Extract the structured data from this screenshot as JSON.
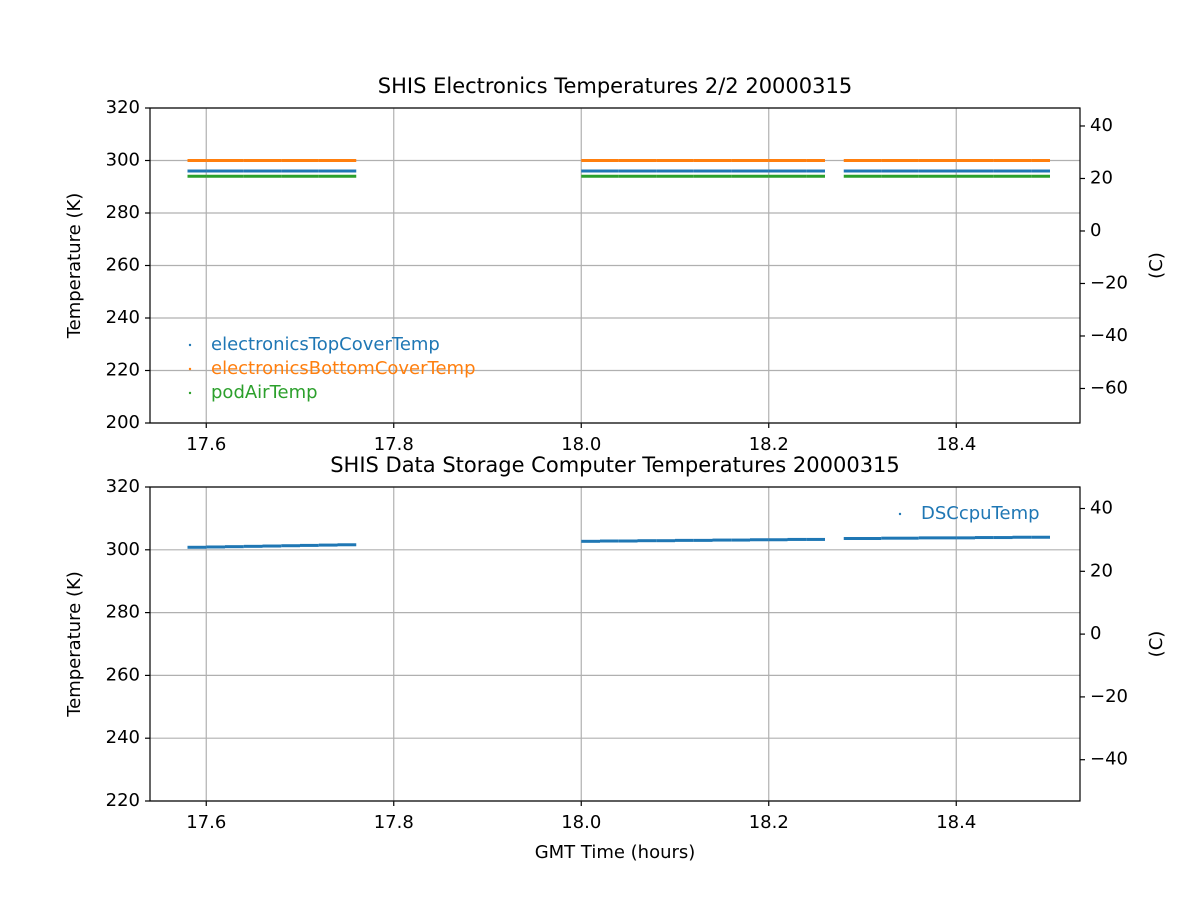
{
  "chart_data": [
    {
      "type": "scatter",
      "title": "SHIS Electronics Temperatures 2/2 20000315",
      "y_label": "Temperature (K)",
      "y2_label": "(C)",
      "x": [
        17.59,
        17.61,
        17.63,
        17.65,
        17.67,
        17.69,
        17.71,
        17.73,
        17.75,
        18.01,
        18.03,
        18.05,
        18.07,
        18.09,
        18.11,
        18.13,
        18.15,
        18.17,
        18.19,
        18.21,
        18.23,
        18.25,
        18.29,
        18.31,
        18.33,
        18.35,
        18.37,
        18.39,
        18.41,
        18.43,
        18.45,
        18.47,
        18.49
      ],
      "series": [
        {
          "name": "electronicsTopCoverTemp",
          "color": "#1f77b4",
          "values": [
            296,
            296,
            296,
            296,
            296,
            296,
            296,
            296,
            296,
            296,
            296,
            296,
            296,
            296,
            296,
            296,
            296,
            296,
            296,
            296,
            296,
            296,
            296,
            296,
            296,
            296,
            296,
            296,
            296,
            296,
            296,
            296,
            296
          ]
        },
        {
          "name": "electronicsBottomCoverTemp",
          "color": "#ff7f0e",
          "values": [
            300,
            300,
            300,
            300,
            300,
            300,
            300,
            300,
            300,
            300,
            300,
            300,
            300,
            300,
            300,
            300,
            300,
            300,
            300,
            300,
            300,
            300,
            300,
            300,
            300,
            300,
            300,
            300,
            300,
            300,
            300,
            300,
            300
          ]
        },
        {
          "name": "podAirTemp",
          "color": "#2ca02c",
          "values": [
            294,
            294,
            294,
            294,
            294,
            294,
            294,
            294,
            294,
            294,
            294,
            294,
            294,
            294,
            294,
            294,
            294,
            294,
            294,
            294,
            294,
            294,
            294,
            294,
            294,
            294,
            294,
            294,
            294,
            294,
            294,
            294,
            294
          ]
        }
      ],
      "xlim": [
        17.54,
        18.532
      ],
      "xticks": [
        17.6,
        17.8,
        {
          "value": 18,
          "label": "18.0"
        },
        18.2,
        18.4
      ],
      "ylim": [
        200,
        320
      ],
      "yticks": [
        200,
        220,
        240,
        260,
        280,
        300,
        320
      ],
      "y2lim": [
        -73.15,
        46.85
      ],
      "y2ticks": [
        {
          "value": -60,
          "label": "−60"
        },
        {
          "value": -40,
          "label": "−40"
        },
        {
          "value": -20,
          "label": "−20"
        },
        0,
        20,
        40
      ],
      "grid": true,
      "legend": "lower left"
    },
    {
      "type": "scatter",
      "title": "SHIS Data Storage Computer Temperatures 20000315",
      "x_label": "GMT Time (hours)",
      "y_label": "Temperature (K)",
      "y2_label": "(C)",
      "x": [
        17.59,
        17.61,
        17.63,
        17.65,
        17.67,
        17.69,
        17.71,
        17.73,
        17.75,
        18.01,
        18.03,
        18.05,
        18.07,
        18.09,
        18.11,
        18.13,
        18.15,
        18.17,
        18.19,
        18.21,
        18.23,
        18.25,
        18.29,
        18.31,
        18.33,
        18.35,
        18.37,
        18.39,
        18.41,
        18.43,
        18.45,
        18.47,
        18.49
      ],
      "series": [
        {
          "name": "DSCcpuTemp",
          "color": "#1f77b4",
          "values": [
            300.8,
            300.9,
            301.0,
            301.1,
            301.2,
            301.3,
            301.4,
            301.5,
            301.6,
            302.7,
            302.8,
            302.8,
            302.9,
            302.9,
            303.0,
            303.0,
            303.1,
            303.1,
            303.2,
            303.2,
            303.3,
            303.3,
            303.6,
            303.6,
            303.7,
            303.7,
            303.8,
            303.8,
            303.8,
            303.9,
            303.9,
            304.0,
            304.0
          ]
        }
      ],
      "xlim": [
        17.54,
        18.532
      ],
      "xticks": [
        17.6,
        17.8,
        {
          "value": 18,
          "label": "18.0"
        },
        18.2,
        18.4
      ],
      "ylim": [
        220,
        320
      ],
      "yticks": [
        220,
        240,
        260,
        280,
        300,
        320
      ],
      "y2lim": [
        -53.15,
        46.85
      ],
      "y2ticks": [
        {
          "value": -40,
          "label": "−40"
        },
        {
          "value": -20,
          "label": "−20"
        },
        0,
        20,
        40
      ],
      "grid": true,
      "legend": "upper right"
    }
  ]
}
